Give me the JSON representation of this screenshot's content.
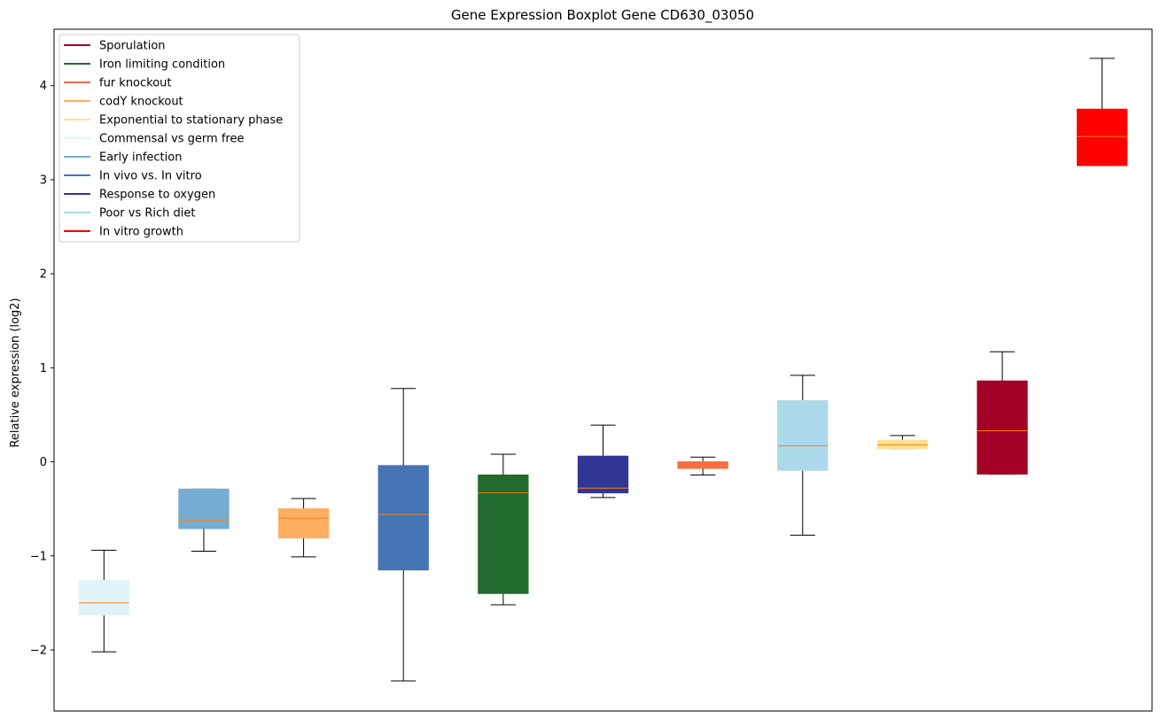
{
  "chart_data": {
    "type": "boxplot",
    "title": "Gene Expression Boxplot Gene CD630_03050",
    "xlabel": "",
    "ylabel": "Relative expression (log2)",
    "ylim": [
      -2.65,
      4.6
    ],
    "yticks": [
      -2,
      -1,
      0,
      1,
      2,
      3,
      4
    ],
    "ytick_labels": [
      "−2",
      "−1",
      "0",
      "1",
      "2",
      "3",
      "4"
    ],
    "legend_position": "top-left",
    "legend": [
      {
        "label": "Sporulation",
        "color": "#a50026"
      },
      {
        "label": "Iron limiting condition",
        "color": "#226b2e"
      },
      {
        "label": "fur knockout",
        "color": "#f46d43"
      },
      {
        "label": "codY knockout",
        "color": "#fdae61"
      },
      {
        "label": "Exponential to stationary phase",
        "color": "#fee090"
      },
      {
        "label": "Commensal vs germ free",
        "color": "#e0f3f8"
      },
      {
        "label": "Early infection",
        "color": "#74add1"
      },
      {
        "label": "In vivo vs. In vitro",
        "color": "#4575b4"
      },
      {
        "label": "Response to oxygen",
        "color": "#313695"
      },
      {
        "label": "Poor vs Rich diet",
        "color": "#abd9e9"
      },
      {
        "label": "In vitro growth",
        "color": "#ff0000"
      }
    ],
    "boxes": [
      {
        "group": "Commensal vs germ free",
        "color": "#e0f3f8",
        "whisker_low": -2.02,
        "q1": -1.63,
        "median": -1.5,
        "q3": -1.26,
        "whisker_high": -0.94
      },
      {
        "group": "Early infection",
        "color": "#74add1",
        "whisker_low": -0.95,
        "q1": -0.71,
        "median": -0.62,
        "q3": -0.29,
        "whisker_high": -0.29
      },
      {
        "group": "codY knockout",
        "color": "#fdae61",
        "whisker_low": -1.01,
        "q1": -0.81,
        "median": -0.6,
        "q3": -0.5,
        "whisker_high": -0.39
      },
      {
        "group": "In vivo vs. In vitro",
        "color": "#4575b4",
        "whisker_low": -2.33,
        "q1": -1.15,
        "median": -0.56,
        "q3": -0.04,
        "whisker_high": 0.78
      },
      {
        "group": "Iron limiting condition",
        "color": "#226b2e",
        "whisker_low": -1.52,
        "q1": -1.4,
        "median": -0.33,
        "q3": -0.14,
        "whisker_high": 0.08
      },
      {
        "group": "Response to oxygen",
        "color": "#313695",
        "whisker_low": -0.38,
        "q1": -0.33,
        "median": -0.28,
        "q3": 0.06,
        "whisker_high": 0.39
      },
      {
        "group": "fur knockout",
        "color": "#f46d43",
        "whisker_low": -0.14,
        "q1": -0.07,
        "median": -0.04,
        "q3": 0.0,
        "whisker_high": 0.05
      },
      {
        "group": "Poor vs Rich diet",
        "color": "#abd9e9",
        "whisker_low": -0.78,
        "q1": -0.09,
        "median": 0.17,
        "q3": 0.65,
        "whisker_high": 0.92
      },
      {
        "group": "Exponential to stationary phase",
        "color": "#fee090",
        "whisker_low": 0.14,
        "q1": 0.14,
        "median": 0.18,
        "q3": 0.23,
        "whisker_high": 0.28
      },
      {
        "group": "Sporulation",
        "color": "#a50026",
        "whisker_low": -0.13,
        "q1": -0.13,
        "median": 0.33,
        "q3": 0.86,
        "whisker_high": 1.17
      },
      {
        "group": "In vitro growth",
        "color": "#ff0000",
        "whisker_low": 3.15,
        "q1": 3.15,
        "median": 3.46,
        "q3": 3.75,
        "whisker_high": 4.29
      }
    ],
    "median_color": "#ff7f0e",
    "whisker_color": "#000000"
  }
}
